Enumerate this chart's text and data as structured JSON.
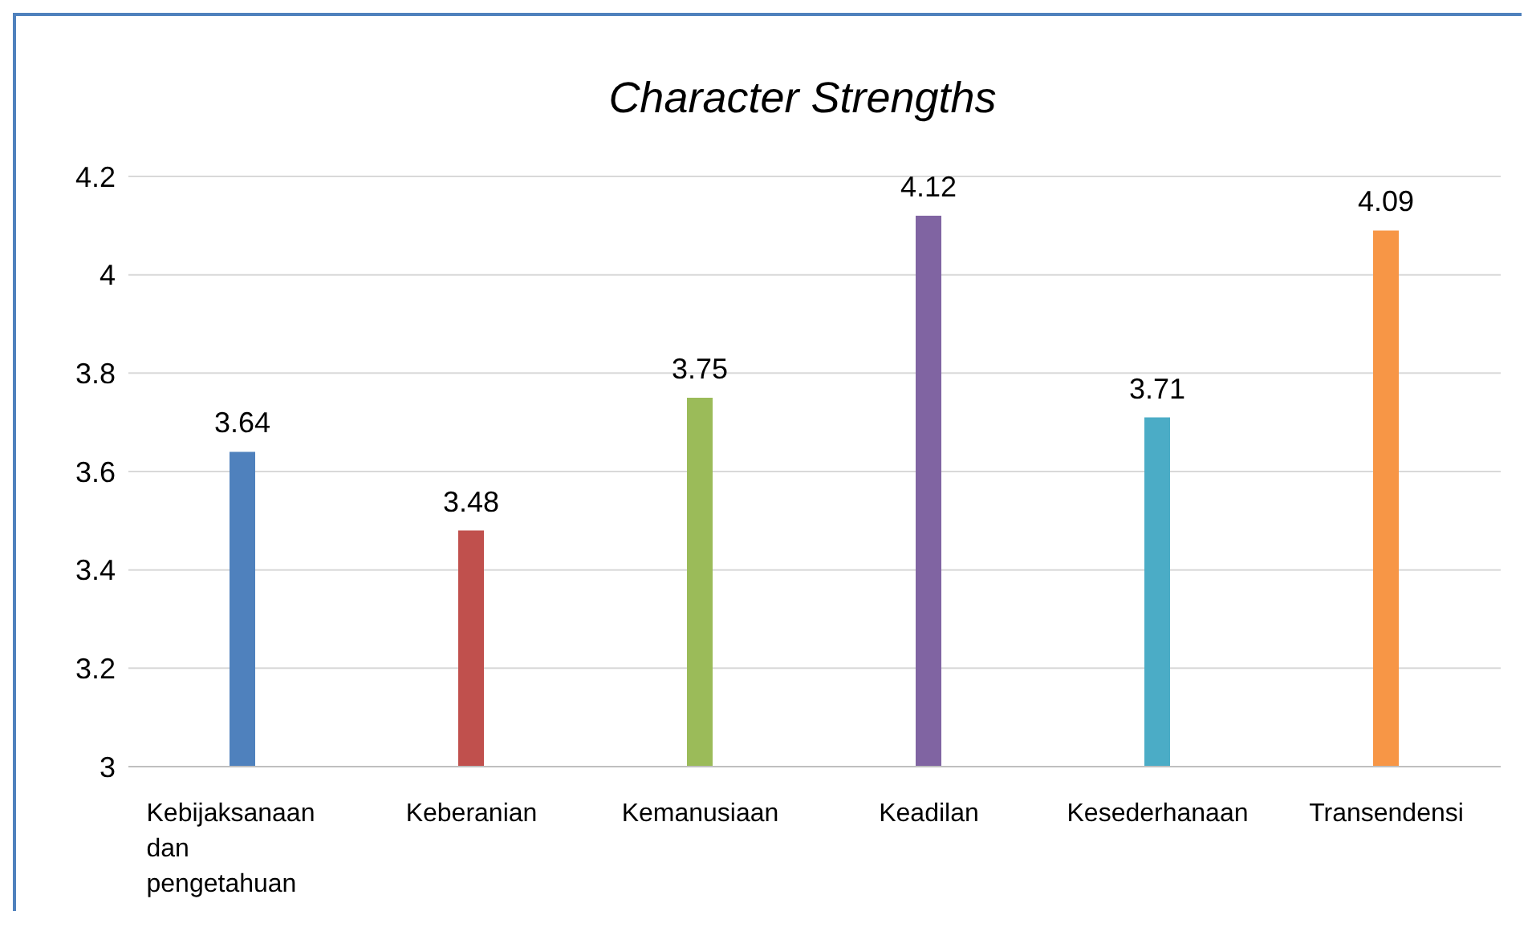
{
  "chart_data": {
    "type": "bar",
    "title": "Character Strengths",
    "categories": [
      "Kebijaksanaan dan pengetahuan",
      "Keberanian",
      "Kemanusiaan",
      "Keadilan",
      "Kesederhanaan",
      "Transendensi"
    ],
    "values": [
      3.64,
      3.48,
      3.75,
      4.12,
      3.71,
      4.09
    ],
    "colors": [
      "#4f81bd",
      "#c0504d",
      "#9bbb59",
      "#8064a2",
      "#4bacc6",
      "#f79646"
    ],
    "ylim": [
      3,
      4.2
    ],
    "yticks": [
      3,
      3.2,
      3.4,
      3.6,
      3.8,
      4,
      4.2
    ],
    "grid": "y",
    "data_labels": true,
    "legend": false
  }
}
